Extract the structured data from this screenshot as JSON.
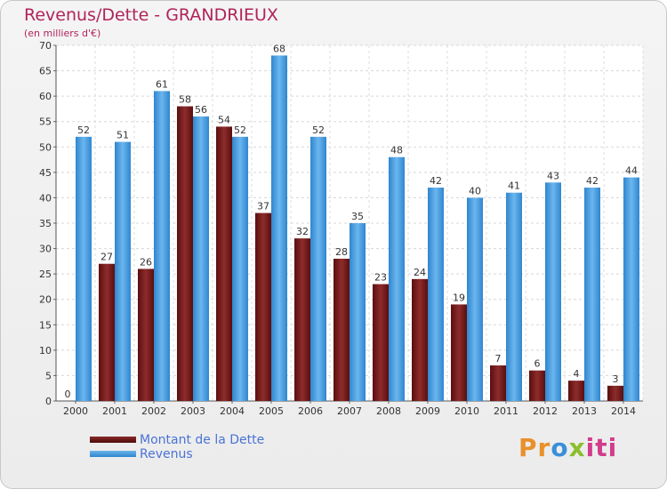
{
  "chart_data": {
    "type": "bar",
    "title": "Revenus/Dette - GRANDRIEUX",
    "subtitle": "(en milliers d'€)",
    "categories": [
      "2000",
      "2001",
      "2002",
      "2003",
      "2004",
      "2005",
      "2006",
      "2007",
      "2008",
      "2009",
      "2010",
      "2011",
      "2012",
      "2013",
      "2014"
    ],
    "series": [
      {
        "name": "Montant de la Dette",
        "color": "#7a1a1a",
        "values": [
          0,
          27,
          26,
          58,
          54,
          37,
          32,
          28,
          23,
          24,
          19,
          7,
          6,
          4,
          3
        ]
      },
      {
        "name": "Revenus",
        "color": "#4a9fe0",
        "values": [
          52,
          51,
          61,
          56,
          52,
          68,
          52,
          35,
          48,
          42,
          40,
          41,
          43,
          42,
          44
        ]
      }
    ],
    "ylim": [
      0,
      70
    ],
    "yticks": [
      0,
      5,
      10,
      15,
      20,
      25,
      30,
      35,
      40,
      45,
      50,
      55,
      60,
      65,
      70
    ],
    "grid": true,
    "legend_position": "bottom-left"
  },
  "logo": {
    "p1": "Pr",
    "p2": "o",
    "p3": "x",
    "p4": "iti"
  }
}
